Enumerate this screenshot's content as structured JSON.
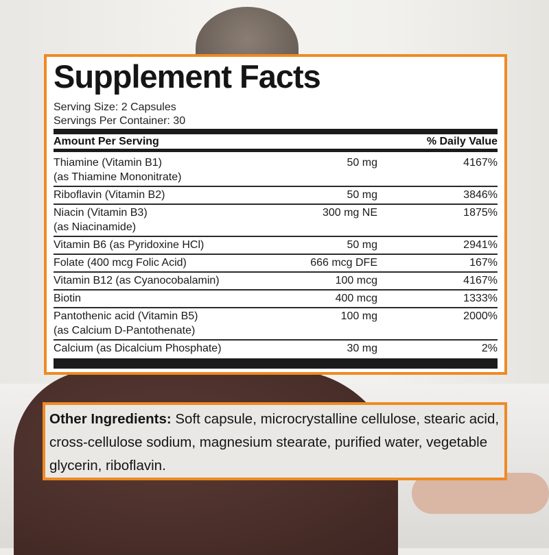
{
  "facts": {
    "title": "Supplement Facts",
    "serving_size": "Serving Size: 2 Capsules",
    "servings_per_container": "Servings Per Container: 30",
    "header_amount": "Amount Per Serving",
    "header_dv": "% Daily Value",
    "rows": [
      {
        "name": "Thiamine (Vitamin B1)",
        "sub": "(as Thiamine Mononitrate)",
        "amount": "50 mg",
        "dv": "4167%"
      },
      {
        "name": "Riboflavin (Vitamin B2)",
        "sub": "",
        "amount": "50 mg",
        "dv": "3846%"
      },
      {
        "name": "Niacin (Vitamin B3)",
        "sub": "(as Niacinamide)",
        "amount": "300 mg NE",
        "dv": "1875%"
      },
      {
        "name": "Vitamin B6 (as Pyridoxine HCl)",
        "sub": "",
        "amount": "50 mg",
        "dv": "2941%"
      },
      {
        "name": "Folate (400 mcg Folic Acid)",
        "sub": "",
        "amount": "666 mcg DFE",
        "dv": "167%"
      },
      {
        "name": "Vitamin B12 (as Cyanocobalamin)",
        "sub": "",
        "amount": "100 mcg",
        "dv": "4167%"
      },
      {
        "name": "Biotin",
        "sub": "",
        "amount": "400 mcg",
        "dv": "1333%"
      },
      {
        "name": "Pantothenic acid (Vitamin B5)",
        "sub": "(as Calcium D-Pantothenate)",
        "amount": "100 mg",
        "dv": "2000%"
      },
      {
        "name": "Calcium (as Dicalcium Phosphate)",
        "sub": "",
        "amount": "30 mg",
        "dv": "2%"
      }
    ]
  },
  "other": {
    "label": "Other Ingredients:",
    "text": " Soft capsule, microcrystalline cellulose, stearic acid, cross-cellulose sodium, magnesium stearate, purified water, vegetable glycerin, riboflavin."
  },
  "colors": {
    "accent": "#ef8a23"
  }
}
